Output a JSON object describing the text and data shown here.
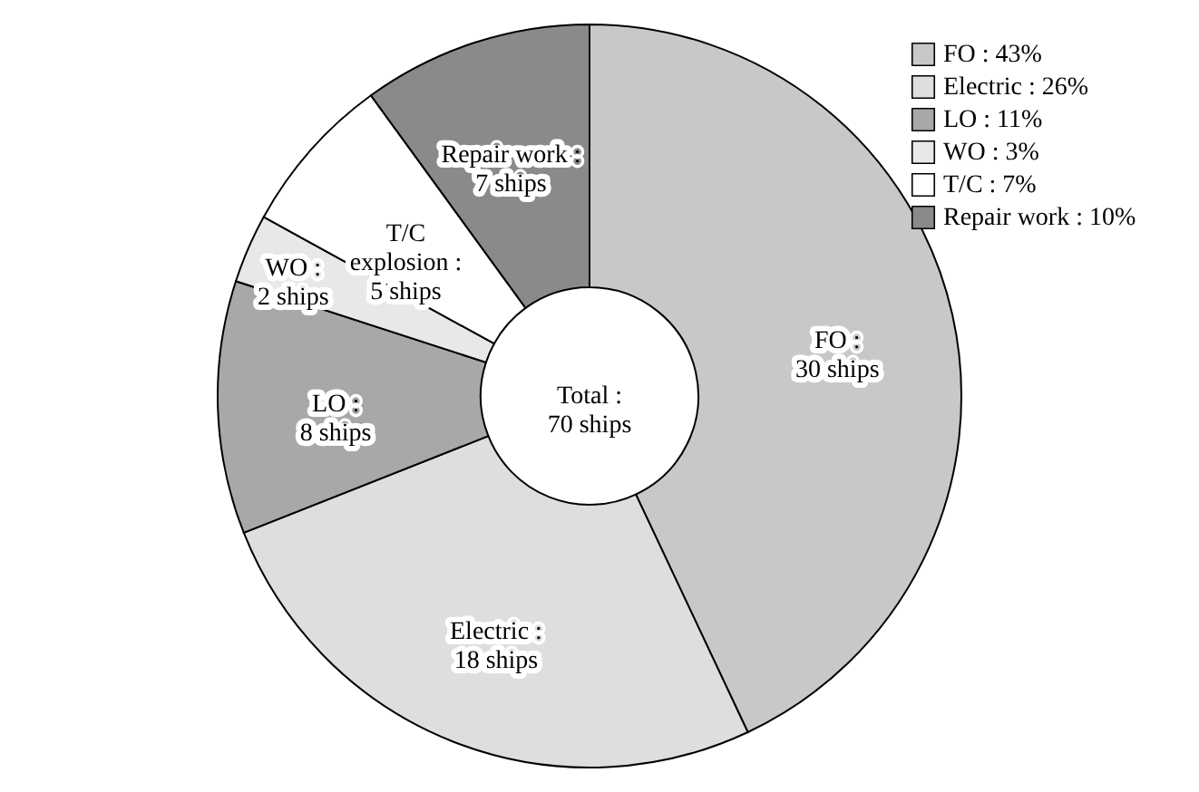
{
  "chart_data": {
    "type": "donut",
    "categories": [
      "FO",
      "Electric",
      "LO",
      "WO",
      "T/C",
      "Repair work"
    ],
    "values": [
      43,
      26,
      11,
      3,
      7,
      10
    ],
    "value_labels": [
      ": 43%",
      ": 26%",
      ": 11%",
      ": 3%",
      ": 7%",
      ": 10%"
    ],
    "colors": [
      "#c8c8c8",
      "#dedede",
      "#a8a8a8",
      "#e8e8e8",
      "#ffffff",
      "#8a8a8a"
    ],
    "annotations": [
      "FO :\n30 ships",
      "Electric :\n18 ships",
      "LO :\n8 ships",
      "WO :\n2 ships",
      "T/C\nexplosion :\n5 ships",
      "Repair work :\n7 ships",
      "Total :\n70 ships"
    ],
    "legend": "top right"
  }
}
